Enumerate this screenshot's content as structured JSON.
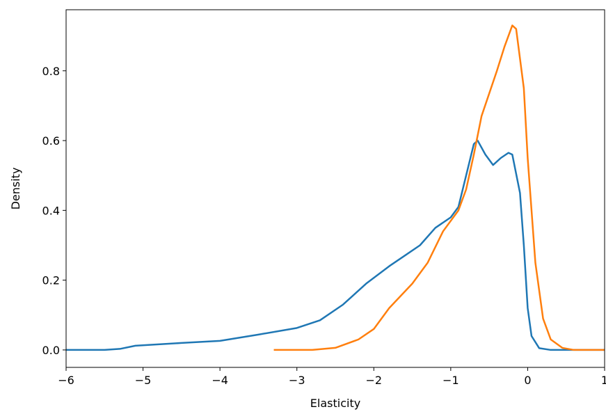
{
  "chart_data": {
    "type": "line",
    "xlabel": "Elasticity",
    "ylabel": "Density",
    "xlim": [
      -6,
      1
    ],
    "ylim": [
      -0.05,
      0.975
    ],
    "xticks": [
      {
        "value": -6,
        "label": "−6"
      },
      {
        "value": -5,
        "label": "−5"
      },
      {
        "value": -4,
        "label": "−4"
      },
      {
        "value": -3,
        "label": "−3"
      },
      {
        "value": -2,
        "label": "−2"
      },
      {
        "value": -1,
        "label": "−1"
      },
      0,
      1
    ],
    "yticks": [
      {
        "value": 0,
        "label": "0.0"
      },
      0.2,
      0.4,
      0.6,
      0.8
    ],
    "series": [
      {
        "color": "#1f77b4",
        "x": [
          -6,
          -5.5,
          -5.3,
          -5.1,
          -4.5,
          -4,
          -3.5,
          -3,
          -2.7,
          -2.4,
          -2.1,
          -1.8,
          -1.6,
          -1.4,
          -1.2,
          -1.0,
          -0.9,
          -0.8,
          -0.7,
          -0.65,
          -0.55,
          -0.45,
          -0.35,
          -0.25,
          -0.2,
          -0.1,
          -0.05,
          0,
          0.05,
          0.15,
          0.3,
          0.6,
          1
        ],
        "values": [
          0,
          0,
          0.003,
          0.012,
          0.02,
          0.026,
          0.044,
          0.063,
          0.085,
          0.13,
          0.19,
          0.24,
          0.27,
          0.3,
          0.35,
          0.38,
          0.41,
          0.5,
          0.59,
          0.6,
          0.56,
          0.53,
          0.55,
          0.565,
          0.56,
          0.45,
          0.3,
          0.12,
          0.04,
          0.005,
          0,
          0,
          0
        ]
      },
      {
        "color": "#ff7f0e",
        "x": [
          -3.3,
          -2.8,
          -2.5,
          -2.2,
          -2.0,
          -1.8,
          -1.5,
          -1.3,
          -1.1,
          -0.9,
          -0.8,
          -0.7,
          -0.6,
          -0.4,
          -0.3,
          -0.2,
          -0.15,
          -0.05,
          0,
          0.1,
          0.2,
          0.3,
          0.45,
          0.6,
          1
        ],
        "values": [
          0,
          0,
          0.006,
          0.03,
          0.06,
          0.12,
          0.19,
          0.25,
          0.34,
          0.4,
          0.46,
          0.56,
          0.67,
          0.8,
          0.87,
          0.93,
          0.92,
          0.75,
          0.55,
          0.25,
          0.09,
          0.03,
          0.006,
          0,
          0
        ]
      }
    ]
  }
}
